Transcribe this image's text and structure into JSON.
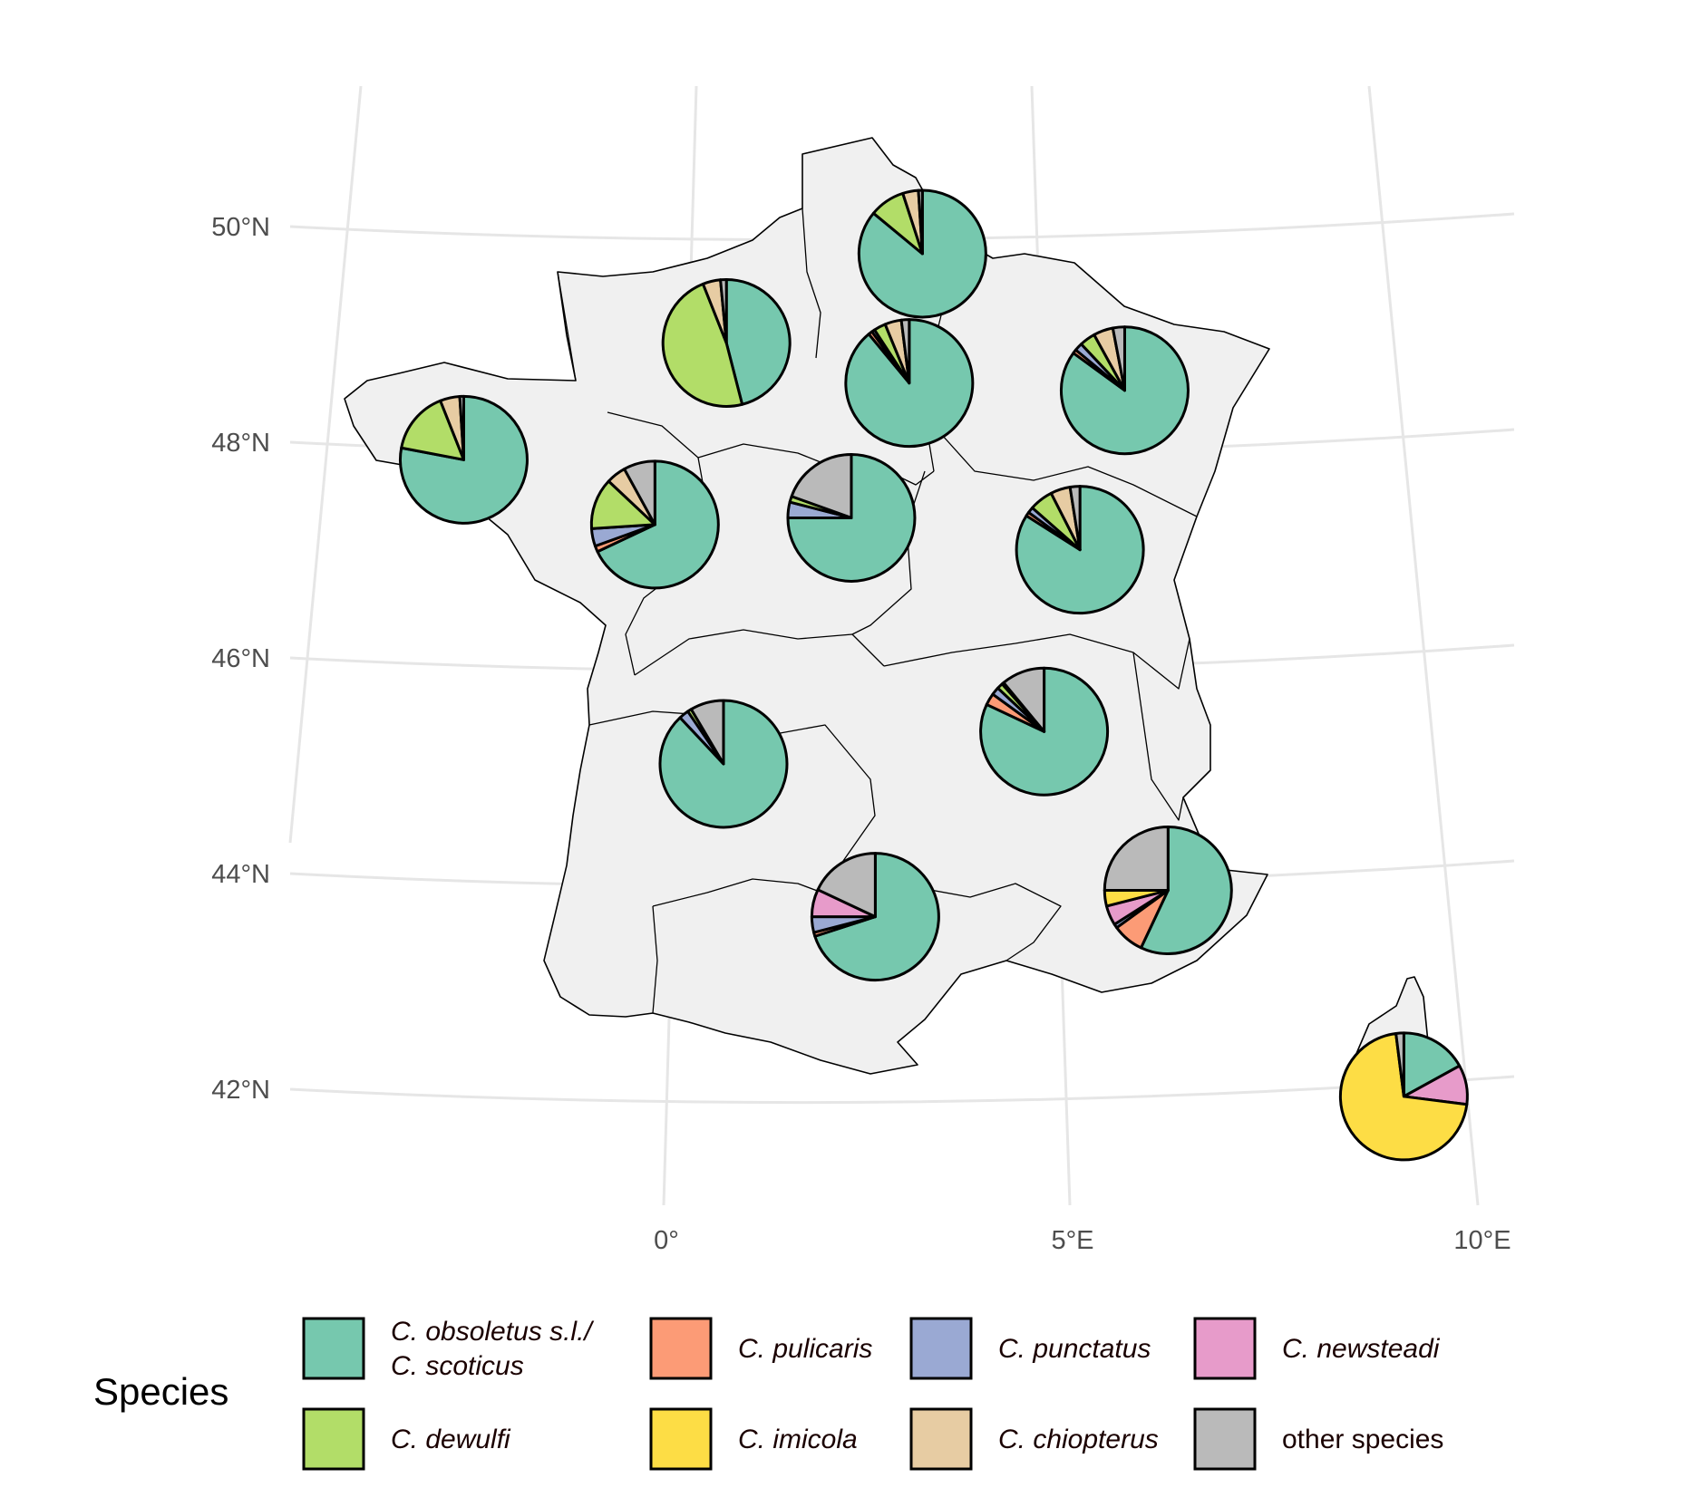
{
  "colors": {
    "C. obsoletus s.l./ C. scoticus": "#76C8AE",
    "C. pulicaris": "#FC9B76",
    "C. punctatus": "#9AA9D3",
    "C. newsteadi": "#E79BCA",
    "C. dewulfi": "#B2DD68",
    "C. imicola": "#FDDD45",
    "C. chiopterus": "#E7CCA3",
    "other species": "#BABABA"
  },
  "axes": {
    "lat_labels": [
      "50°N",
      "48°N",
      "46°N",
      "44°N",
      "42°N"
    ],
    "lon_labels": [
      "0°",
      "5°E",
      "10°E"
    ]
  },
  "legend": {
    "title": "Species",
    "items": [
      {
        "key": "C. obsoletus s.l./ C. scoticus",
        "lines": [
          "C. obsoletus s.l./",
          "C. scoticus"
        ],
        "italic": true
      },
      {
        "key": "C. pulicaris",
        "lines": [
          "C. pulicaris"
        ],
        "italic": true
      },
      {
        "key": "C. punctatus",
        "lines": [
          "C. punctatus"
        ],
        "italic": true
      },
      {
        "key": "C. newsteadi",
        "lines": [
          "C. newsteadi"
        ],
        "italic": true
      },
      {
        "key": "C. dewulfi",
        "lines": [
          "C. dewulfi"
        ],
        "italic": true
      },
      {
        "key": "C. imicola",
        "lines": [
          "C. imicola"
        ],
        "italic": true
      },
      {
        "key": "C. chiopterus",
        "lines": [
          "C. chiopterus"
        ],
        "italic": true
      },
      {
        "key": "other species",
        "lines": [
          "other species"
        ],
        "italic": false
      }
    ]
  },
  "chart_data": {
    "type": "pie",
    "species_order": [
      "C. obsoletus s.l./ C. scoticus",
      "C. pulicaris",
      "C. punctatus",
      "C. newsteadi",
      "C. dewulfi",
      "C. imicola",
      "C. chiopterus",
      "other species"
    ],
    "regions": [
      {
        "lon": 2.75,
        "lat": 49.75,
        "values": {
          "C. obsoletus s.l./ C. scoticus": 86.0,
          "C. dewulfi": 9.0,
          "C. chiopterus": 4.0,
          "other species": 1.0
        }
      },
      {
        "lon": 0.4,
        "lat": 48.95,
        "values": {
          "C. obsoletus s.l./ C. scoticus": 46.0,
          "C. dewulfi": 48.0,
          "C. chiopterus": 4.5,
          "other species": 1.5
        }
      },
      {
        "lon": 2.6,
        "lat": 48.55,
        "values": {
          "C. obsoletus s.l./ C. scoticus": 89.0,
          "C. pulicaris": 1.0,
          "C. punctatus": 0.8,
          "C. dewulfi": 3.0,
          "C. chiopterus": 4.2,
          "other species": 2.0
        }
      },
      {
        "lon": 5.2,
        "lat": 48.55,
        "values": {
          "C. obsoletus s.l./ C. scoticus": 85.0,
          "C. pulicaris": 1.0,
          "C. punctatus": 2.0,
          "C. dewulfi": 4.0,
          "C. chiopterus": 5.0,
          "other species": 3.0
        }
      },
      {
        "lon": -2.8,
        "lat": 48.05,
        "values": {
          "C. obsoletus s.l./ C. scoticus": 78.0,
          "C. dewulfi": 16.0,
          "C. chiopterus": 5.0,
          "other species": 1.0
        }
      },
      {
        "lon": -0.5,
        "lat": 47.3,
        "values": {
          "C. obsoletus s.l./ C. scoticus": 68.0,
          "C. pulicaris": 1.5,
          "C. punctatus": 4.5,
          "C. dewulfi": 13.0,
          "C. chiopterus": 5.0,
          "other species": 8.0
        }
      },
      {
        "lon": 1.9,
        "lat": 47.3,
        "values": {
          "C. obsoletus s.l./ C. scoticus": 75.0,
          "C. punctatus": 4.0,
          "C. dewulfi": 1.5,
          "other species": 19.5
        }
      },
      {
        "lon": 4.7,
        "lat": 47.05,
        "values": {
          "C. obsoletus s.l./ C. scoticus": 84.0,
          "C. pulicaris": 1.0,
          "C. punctatus": 1.5,
          "C. dewulfi": 6.0,
          "C. chiopterus": 5.0,
          "other species": 2.5
        }
      },
      {
        "lon": 0.3,
        "lat": 45.05,
        "values": {
          "C. obsoletus s.l./ C. scoticus": 88.0,
          "C. punctatus": 2.5,
          "C. dewulfi": 1.0,
          "other species": 8.5
        }
      },
      {
        "lon": 4.3,
        "lat": 45.35,
        "values": {
          "C. obsoletus s.l./ C. scoticus": 82.0,
          "C. pulicaris": 3.0,
          "C. punctatus": 2.0,
          "C. dewulfi": 1.5,
          "C. chiopterus": 0.5,
          "other species": 11.0
        }
      },
      {
        "lon": 2.2,
        "lat": 43.6,
        "values": {
          "C. obsoletus s.l./ C. scoticus": 70.0,
          "C. pulicaris": 1.0,
          "C. punctatus": 4.0,
          "C. newsteadi": 7.0,
          "other species": 18.0
        }
      },
      {
        "lon": 5.9,
        "lat": 43.95,
        "values": {
          "C. obsoletus s.l./ C. scoticus": 57.0,
          "C. pulicaris": 8.0,
          "C. punctatus": 1.0,
          "C. newsteadi": 5.0,
          "C. imicola": 4.0,
          "other species": 25.0
        }
      },
      {
        "lon": 9.0,
        "lat": 42.3,
        "values": {
          "C. obsoletus s.l./ C. scoticus": 17.0,
          "C. newsteadi": 10.0,
          "C. imicola": 71.0,
          "other species": 2.0
        }
      }
    ]
  }
}
